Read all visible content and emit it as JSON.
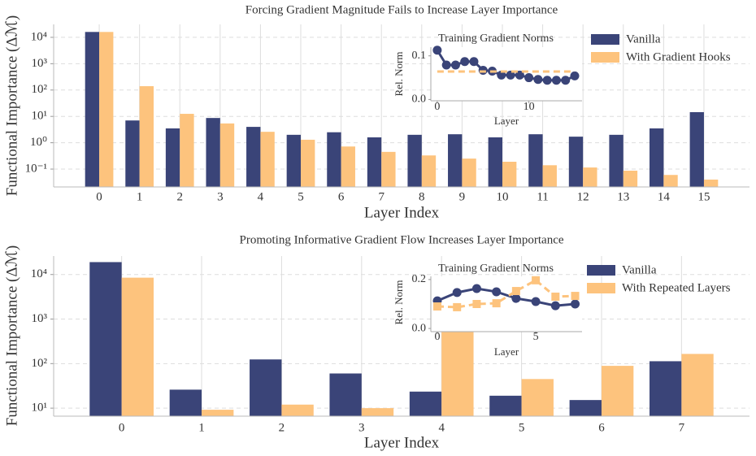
{
  "chart_data": [
    {
      "type": "bar",
      "title": "Forcing Gradient Magnitude Fails to Increase Layer Importance",
      "xlabel": "Layer Index",
      "ylabel": "Functional Importance (Δℳ)",
      "categories": [
        "0",
        "1",
        "2",
        "3",
        "4",
        "5",
        "6",
        "7",
        "8",
        "9",
        "10",
        "11",
        "12",
        "13",
        "14",
        "15"
      ],
      "series": [
        {
          "name": "Vanilla",
          "color": "#3a4478",
          "values": [
            16000,
            7,
            3.5,
            8.7,
            4,
            2,
            2.5,
            1.6,
            2,
            2.1,
            1.6,
            2.1,
            1.7,
            2,
            3.5,
            14.5
          ]
        },
        {
          "name": "With Gradient Hooks",
          "color": "#fdc37d",
          "values": [
            16000,
            140,
            12.5,
            5.4,
            2.6,
            1.3,
            0.72,
            0.45,
            0.33,
            0.25,
            0.19,
            0.14,
            0.115,
            0.087,
            0.06,
            0.04
          ]
        }
      ],
      "log": true,
      "ylim": [
        0.021,
        31000
      ],
      "yticks": [
        {
          "value": 0.1,
          "label": "10⁻¹"
        },
        {
          "value": 1,
          "label": "10⁰"
        },
        {
          "value": 10,
          "label": "10¹"
        },
        {
          "value": 100,
          "label": "10²"
        },
        {
          "value": 1000,
          "label": "10³"
        },
        {
          "value": 10000,
          "label": "10⁴"
        }
      ],
      "grid": true,
      "legend": "upper right"
    },
    {
      "type": "line",
      "title": "Training Gradient Norms",
      "xlabel": "Layer",
      "ylabel": "Rel. Norm",
      "x": [
        0,
        1,
        2,
        3,
        4,
        5,
        6,
        7,
        8,
        9,
        10,
        11,
        12,
        13,
        14,
        15
      ],
      "series": [
        {
          "color": "#3a4478",
          "marker": "circle",
          "dashed": false,
          "values": [
            0.113,
            0.079,
            0.079,
            0.087,
            0.087,
            0.067,
            0.065,
            0.056,
            0.056,
            0.056,
            0.05,
            0.046,
            0.044,
            0.044,
            0.044,
            0.054
          ]
        },
        {
          "color": "#fdc37d",
          "marker": null,
          "dashed": true,
          "values": [
            0.064,
            0.064,
            0.064,
            0.064,
            0.064,
            0.064,
            0.064,
            0.064,
            0.064,
            0.064,
            0.064,
            0.064,
            0.064,
            0.064,
            0.064,
            0.064
          ]
        }
      ],
      "xlim": [
        -0.7,
        15.8
      ],
      "xticks": [
        0,
        10
      ],
      "ylim": [
        -0.003,
        0.12
      ],
      "yticks": [
        {
          "value": 0,
          "label": "0.0"
        },
        0.1
      ]
    },
    {
      "type": "bar",
      "title": "Promoting Informative Gradient Flow Increases Layer Importance",
      "xlabel": "Layer Index",
      "ylabel": "Functional Importance (Δℳ)",
      "categories": [
        "0",
        "1",
        "2",
        "3",
        "4",
        "5",
        "6",
        "7"
      ],
      "series": [
        {
          "name": "Vanilla",
          "color": "#3a4478",
          "values": [
            19000,
            26,
            124,
            60,
            23.5,
            19,
            15.2,
            113
          ]
        },
        {
          "name": "With Repeated Layers",
          "color": "#fdc37d",
          "values": [
            8500,
            9.2,
            12,
            10,
            510,
            45,
            89,
            165
          ]
        }
      ],
      "log": true,
      "ylim": [
        6.6,
        26000
      ],
      "yticks": [
        {
          "value": 10,
          "label": "10¹"
        },
        {
          "value": 100,
          "label": "10²"
        },
        {
          "value": 1000,
          "label": "10³"
        },
        {
          "value": 10000,
          "label": "10⁴"
        }
      ],
      "grid": true,
      "legend": "upper right"
    },
    {
      "type": "line",
      "title": "Training Gradient Norms",
      "xlabel": "Layer",
      "ylabel": "Rel. Norm",
      "x": [
        0,
        1,
        2,
        3,
        4,
        5,
        6,
        7
      ],
      "series": [
        {
          "color": "#3a4478",
          "marker": "circle",
          "dashed": false,
          "values": [
            0.113,
            0.147,
            0.163,
            0.15,
            0.123,
            0.11,
            0.093,
            0.1
          ]
        },
        {
          "color": "#fdc37d",
          "marker": "square",
          "dashed": true,
          "values": [
            0.09,
            0.087,
            0.1,
            0.103,
            0.153,
            0.197,
            0.13,
            0.133
          ]
        }
      ],
      "xlim": [
        -0.33,
        7.35
      ],
      "xticks": [
        0,
        5
      ],
      "ylim": [
        -0.013,
        0.213
      ],
      "yticks": [
        {
          "value": 0,
          "label": "0.0"
        },
        0.2
      ]
    }
  ]
}
